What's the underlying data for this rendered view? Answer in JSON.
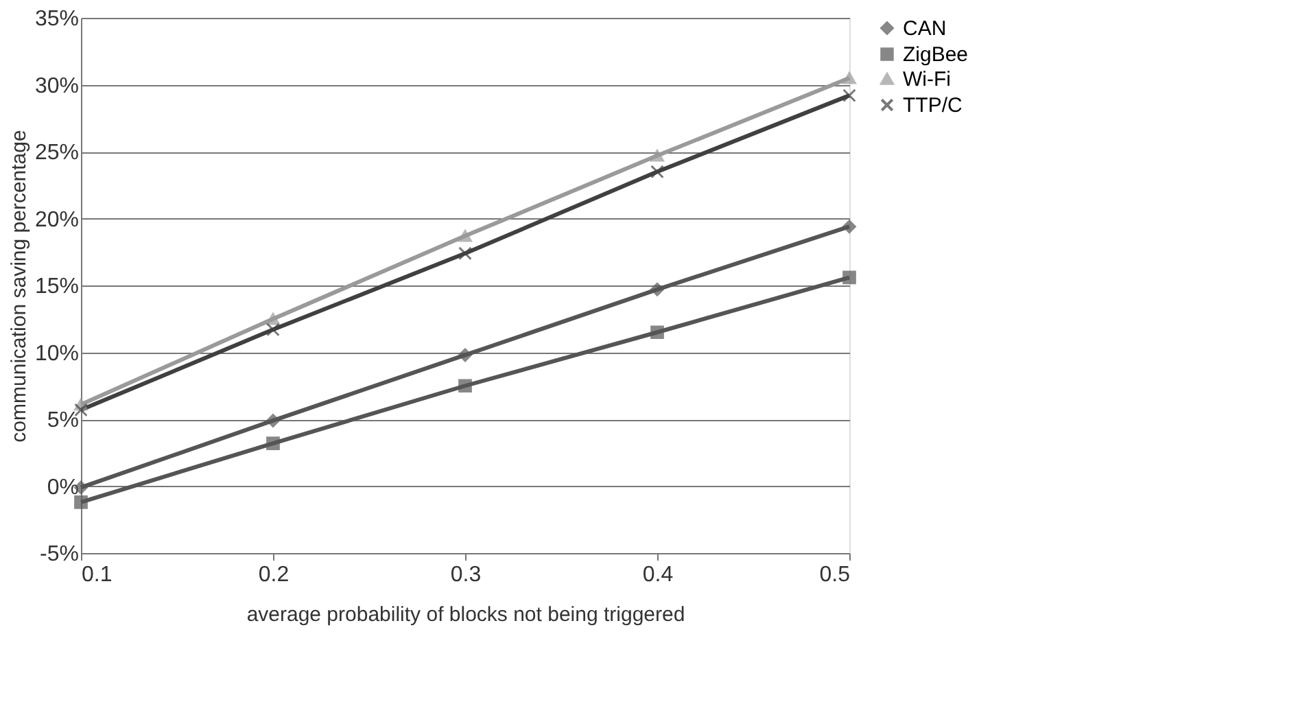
{
  "chart_data": {
    "type": "line",
    "xlabel": "average probability of blocks not being triggered",
    "ylabel": "communication saving percentage",
    "x": [
      0.1,
      0.2,
      0.3,
      0.4,
      0.5
    ],
    "series": [
      {
        "name": "CAN",
        "color": "#555555",
        "marker": "diamond",
        "values": [
          -0.1,
          4.9,
          9.8,
          14.7,
          19.4
        ]
      },
      {
        "name": "ZigBee",
        "color": "#555555",
        "marker": "square",
        "values": [
          -1.2,
          3.2,
          7.5,
          11.5,
          15.6
        ]
      },
      {
        "name": "Wi-Fi",
        "color": "#9a9a9a",
        "marker": "triangle",
        "values": [
          6.1,
          12.5,
          18.7,
          24.7,
          30.5
        ]
      },
      {
        "name": "TTP/C",
        "color": "#404040",
        "marker": "cross",
        "values": [
          5.7,
          11.7,
          17.4,
          23.5,
          29.2
        ]
      }
    ],
    "xlim": [
      0.1,
      0.5
    ],
    "xticks": [
      0.1,
      0.2,
      0.3,
      0.4,
      0.5
    ],
    "ylim": [
      -5,
      35
    ],
    "yticks": [
      {
        "value": -5,
        "label": "-5%"
      },
      {
        "value": 0,
        "label": "0%"
      },
      {
        "value": 5,
        "label": "5%"
      },
      {
        "value": 10,
        "label": "10%"
      },
      {
        "value": 15,
        "label": "15%"
      },
      {
        "value": 20,
        "label": "20%"
      },
      {
        "value": 25,
        "label": "25%"
      },
      {
        "value": 30,
        "label": "30%"
      },
      {
        "value": 35,
        "label": "35%"
      }
    ],
    "grid": "y",
    "legend": "right",
    "line_style": "solid"
  }
}
